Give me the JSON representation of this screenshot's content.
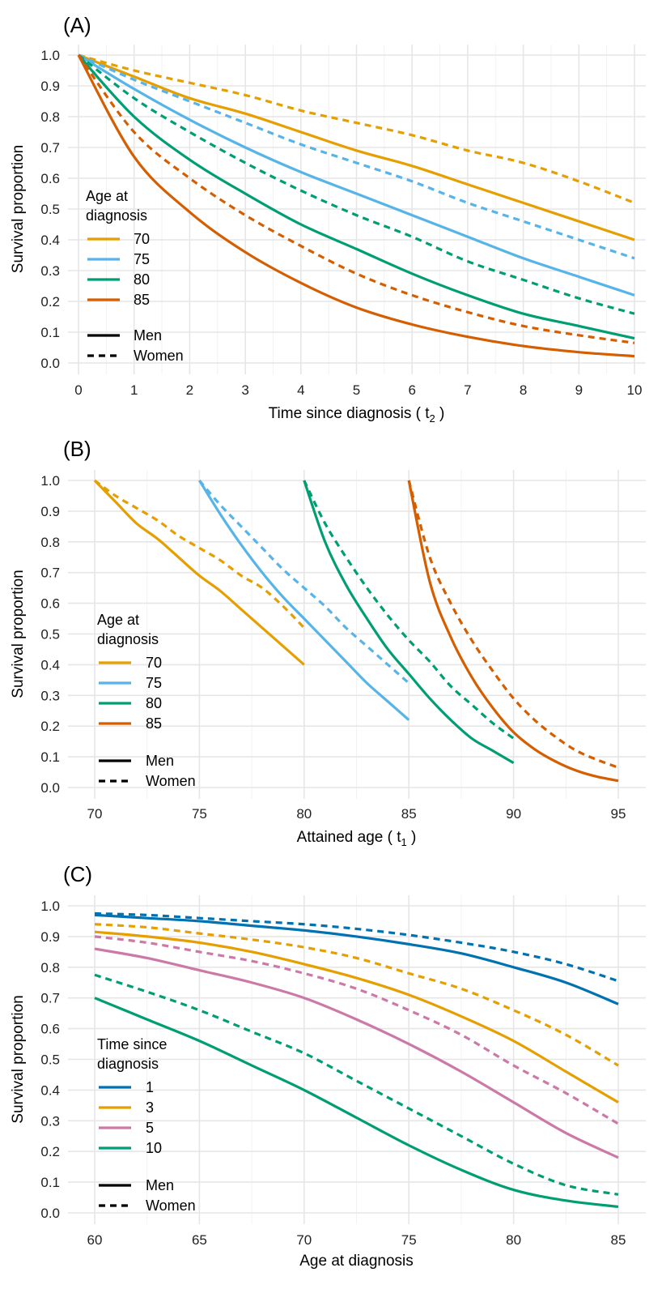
{
  "chart_data": [
    {
      "type": "line",
      "panel_label": "(A)",
      "xlabel": "Time since diagnosis (",
      "xlabel_var": "t",
      "xlabel_sub": "2",
      "xlabel_close": ")",
      "ylabel": "Survival proportion",
      "xlim": [
        0,
        10
      ],
      "ylim": [
        0,
        1
      ],
      "x_ticks": [
        "0",
        "1",
        "2",
        "3",
        "4",
        "5",
        "6",
        "7",
        "8",
        "9",
        "10"
      ],
      "y_ticks": [
        "0.0",
        "0.1",
        "0.2",
        "0.3",
        "0.4",
        "0.5",
        "0.6",
        "0.7",
        "0.8",
        "0.9",
        "1.0"
      ],
      "grid": true,
      "legend": {
        "placement": "left",
        "title": [
          "Age at",
          "diagnosis"
        ],
        "groups": [
          "70",
          "75",
          "80",
          "85"
        ],
        "linetypes": [
          "Men",
          "Women"
        ]
      },
      "series": [
        {
          "group": "70",
          "sex": "Men",
          "color": "#E69F00",
          "dash": "solid",
          "x": [
            0,
            1,
            2,
            3,
            4,
            5,
            6,
            7,
            8,
            9,
            10
          ],
          "y": [
            1.0,
            0.93,
            0.86,
            0.81,
            0.75,
            0.69,
            0.64,
            0.58,
            0.52,
            0.46,
            0.4
          ]
        },
        {
          "group": "70",
          "sex": "Women",
          "color": "#E69F00",
          "dash": "dashed",
          "x": [
            0,
            1,
            2,
            3,
            4,
            5,
            6,
            7,
            8,
            9,
            10
          ],
          "y": [
            1.0,
            0.95,
            0.91,
            0.87,
            0.82,
            0.78,
            0.74,
            0.69,
            0.65,
            0.59,
            0.52
          ]
        },
        {
          "group": "75",
          "sex": "Men",
          "color": "#56B4E9",
          "dash": "solid",
          "x": [
            0,
            1,
            2,
            3,
            4,
            5,
            6,
            7,
            8,
            9,
            10
          ],
          "y": [
            1.0,
            0.89,
            0.79,
            0.7,
            0.62,
            0.55,
            0.48,
            0.41,
            0.34,
            0.28,
            0.22
          ]
        },
        {
          "group": "75",
          "sex": "Women",
          "color": "#56B4E9",
          "dash": "dashed",
          "x": [
            0,
            1,
            2,
            3,
            4,
            5,
            6,
            7,
            8,
            9,
            10
          ],
          "y": [
            1.0,
            0.92,
            0.85,
            0.78,
            0.71,
            0.65,
            0.59,
            0.52,
            0.46,
            0.4,
            0.34
          ]
        },
        {
          "group": "80",
          "sex": "Men",
          "color": "#009E73",
          "dash": "solid",
          "x": [
            0,
            1,
            2,
            3,
            4,
            5,
            6,
            7,
            8,
            9,
            10
          ],
          "y": [
            1.0,
            0.8,
            0.66,
            0.55,
            0.45,
            0.37,
            0.29,
            0.22,
            0.16,
            0.12,
            0.08
          ]
        },
        {
          "group": "80",
          "sex": "Women",
          "color": "#009E73",
          "dash": "dashed",
          "x": [
            0,
            1,
            2,
            3,
            4,
            5,
            6,
            7,
            8,
            9,
            10
          ],
          "y": [
            1.0,
            0.86,
            0.75,
            0.65,
            0.56,
            0.48,
            0.41,
            0.33,
            0.27,
            0.21,
            0.16
          ]
        },
        {
          "group": "85",
          "sex": "Men",
          "color": "#D55E00",
          "dash": "solid",
          "x": [
            0,
            1,
            2,
            3,
            4,
            5,
            6,
            7,
            8,
            9,
            10
          ],
          "y": [
            1.0,
            0.67,
            0.49,
            0.36,
            0.26,
            0.18,
            0.125,
            0.085,
            0.055,
            0.035,
            0.022
          ]
        },
        {
          "group": "85",
          "sex": "Women",
          "color": "#D55E00",
          "dash": "dashed",
          "x": [
            0,
            1,
            2,
            3,
            4,
            5,
            6,
            7,
            8,
            9,
            10
          ],
          "y": [
            1.0,
            0.75,
            0.6,
            0.48,
            0.38,
            0.29,
            0.22,
            0.165,
            0.12,
            0.09,
            0.065
          ]
        }
      ]
    },
    {
      "type": "line",
      "panel_label": "(B)",
      "xlabel": "Attained age (",
      "xlabel_var": "t",
      "xlabel_sub": "1",
      "xlabel_close": ")",
      "ylabel": "Survival proportion",
      "xlim": [
        68.5,
        96.5
      ],
      "ylim": [
        0,
        1
      ],
      "x_ticks": [
        "70",
        "75",
        "80",
        "85",
        "90",
        "95"
      ],
      "y_ticks": [
        "0.0",
        "0.1",
        "0.2",
        "0.3",
        "0.4",
        "0.5",
        "0.6",
        "0.7",
        "0.8",
        "0.9",
        "1.0"
      ],
      "grid": true,
      "legend": {
        "placement": "left",
        "title": [
          "Age at",
          "diagnosis"
        ],
        "groups": [
          "70",
          "75",
          "80",
          "85"
        ],
        "linetypes": [
          "Men",
          "Women"
        ]
      },
      "series": [
        {
          "group": "70",
          "sex": "Men",
          "color": "#E69F00",
          "dash": "solid",
          "x": [
            70,
            71,
            72,
            73,
            74,
            75,
            76,
            77,
            78,
            79,
            80
          ],
          "y": [
            1.0,
            0.93,
            0.86,
            0.81,
            0.75,
            0.69,
            0.64,
            0.58,
            0.52,
            0.46,
            0.4
          ]
        },
        {
          "group": "70",
          "sex": "Women",
          "color": "#E69F00",
          "dash": "dashed",
          "x": [
            70,
            71,
            72,
            73,
            74,
            75,
            76,
            77,
            78,
            79,
            80
          ],
          "y": [
            1.0,
            0.95,
            0.91,
            0.87,
            0.82,
            0.78,
            0.74,
            0.69,
            0.65,
            0.59,
            0.52
          ]
        },
        {
          "group": "75",
          "sex": "Men",
          "color": "#56B4E9",
          "dash": "solid",
          "x": [
            75,
            76,
            77,
            78,
            79,
            80,
            81,
            82,
            83,
            84,
            85
          ],
          "y": [
            1.0,
            0.89,
            0.79,
            0.7,
            0.62,
            0.55,
            0.48,
            0.41,
            0.34,
            0.28,
            0.22
          ]
        },
        {
          "group": "75",
          "sex": "Women",
          "color": "#56B4E9",
          "dash": "dashed",
          "x": [
            75,
            76,
            77,
            78,
            79,
            80,
            81,
            82,
            83,
            84,
            85
          ],
          "y": [
            1.0,
            0.92,
            0.85,
            0.78,
            0.71,
            0.65,
            0.59,
            0.52,
            0.46,
            0.4,
            0.34
          ]
        },
        {
          "group": "80",
          "sex": "Men",
          "color": "#009E73",
          "dash": "solid",
          "x": [
            80,
            81,
            82,
            83,
            84,
            85,
            86,
            87,
            88,
            89,
            90
          ],
          "y": [
            1.0,
            0.8,
            0.66,
            0.55,
            0.45,
            0.37,
            0.29,
            0.22,
            0.16,
            0.12,
            0.08
          ]
        },
        {
          "group": "80",
          "sex": "Women",
          "color": "#009E73",
          "dash": "dashed",
          "x": [
            80,
            81,
            82,
            83,
            84,
            85,
            86,
            87,
            88,
            89,
            90
          ],
          "y": [
            1.0,
            0.86,
            0.75,
            0.65,
            0.56,
            0.48,
            0.41,
            0.33,
            0.27,
            0.21,
            0.16
          ]
        },
        {
          "group": "85",
          "sex": "Men",
          "color": "#D55E00",
          "dash": "solid",
          "x": [
            85,
            86,
            87,
            88,
            89,
            90,
            91,
            92,
            93,
            94,
            95
          ],
          "y": [
            1.0,
            0.67,
            0.49,
            0.36,
            0.26,
            0.18,
            0.125,
            0.085,
            0.055,
            0.035,
            0.022
          ]
        },
        {
          "group": "85",
          "sex": "Women",
          "color": "#D55E00",
          "dash": "dashed",
          "x": [
            85,
            86,
            87,
            88,
            89,
            90,
            91,
            92,
            93,
            94,
            95
          ],
          "y": [
            1.0,
            0.75,
            0.6,
            0.48,
            0.38,
            0.29,
            0.22,
            0.165,
            0.12,
            0.09,
            0.065
          ]
        }
      ]
    },
    {
      "type": "line",
      "panel_label": "(C)",
      "xlabel": "Age at diagnosis",
      "ylabel": "Survival proportion",
      "xlim": [
        58.8,
        86.2
      ],
      "ylim": [
        0,
        1
      ],
      "x_ticks": [
        "60",
        "65",
        "70",
        "75",
        "80",
        "85"
      ],
      "y_ticks": [
        "0.0",
        "0.1",
        "0.2",
        "0.3",
        "0.4",
        "0.5",
        "0.6",
        "0.7",
        "0.8",
        "0.9",
        "1.0"
      ],
      "grid": true,
      "legend": {
        "placement": "left",
        "title": [
          "Time since",
          "diagnosis"
        ],
        "groups": [
          "1",
          "3",
          "5",
          "10"
        ],
        "linetypes": [
          "Men",
          "Women"
        ]
      },
      "series": [
        {
          "group": "1",
          "sex": "Men",
          "color": "#0072B2",
          "dash": "solid",
          "x": [
            60,
            62.5,
            65,
            67.5,
            70,
            72.5,
            75,
            77.5,
            80,
            82.5,
            85
          ],
          "y": [
            0.97,
            0.96,
            0.95,
            0.935,
            0.92,
            0.9,
            0.875,
            0.845,
            0.8,
            0.75,
            0.68
          ]
        },
        {
          "group": "1",
          "sex": "Women",
          "color": "#0072B2",
          "dash": "dashed",
          "x": [
            60,
            62.5,
            65,
            67.5,
            70,
            72.5,
            75,
            77.5,
            80,
            82.5,
            85
          ],
          "y": [
            0.975,
            0.97,
            0.96,
            0.95,
            0.94,
            0.925,
            0.905,
            0.88,
            0.85,
            0.81,
            0.755
          ]
        },
        {
          "group": "3",
          "sex": "Men",
          "color": "#E69F00",
          "dash": "solid",
          "x": [
            60,
            62.5,
            65,
            67.5,
            70,
            72.5,
            75,
            77.5,
            80,
            82.5,
            85
          ],
          "y": [
            0.915,
            0.9,
            0.88,
            0.85,
            0.81,
            0.765,
            0.71,
            0.64,
            0.56,
            0.46,
            0.36
          ]
        },
        {
          "group": "3",
          "sex": "Women",
          "color": "#E69F00",
          "dash": "dashed",
          "x": [
            60,
            62.5,
            65,
            67.5,
            70,
            72.5,
            75,
            77.5,
            80,
            82.5,
            85
          ],
          "y": [
            0.94,
            0.93,
            0.91,
            0.89,
            0.865,
            0.83,
            0.78,
            0.73,
            0.66,
            0.58,
            0.48
          ]
        },
        {
          "group": "5",
          "sex": "Men",
          "color": "#CC79A7",
          "dash": "solid",
          "x": [
            60,
            62.5,
            65,
            67.5,
            70,
            72.5,
            75,
            77.5,
            80,
            82.5,
            85
          ],
          "y": [
            0.86,
            0.83,
            0.79,
            0.75,
            0.7,
            0.63,
            0.55,
            0.46,
            0.36,
            0.26,
            0.18
          ]
        },
        {
          "group": "5",
          "sex": "Women",
          "color": "#CC79A7",
          "dash": "dashed",
          "x": [
            60,
            62.5,
            65,
            67.5,
            70,
            72.5,
            75,
            77.5,
            80,
            82.5,
            85
          ],
          "y": [
            0.9,
            0.88,
            0.85,
            0.82,
            0.78,
            0.73,
            0.66,
            0.58,
            0.48,
            0.39,
            0.29
          ]
        },
        {
          "group": "10",
          "sex": "Men",
          "color": "#009E73",
          "dash": "solid",
          "x": [
            60,
            62.5,
            65,
            67.5,
            70,
            72.5,
            75,
            77.5,
            80,
            82.5,
            85
          ],
          "y": [
            0.7,
            0.63,
            0.56,
            0.48,
            0.4,
            0.31,
            0.22,
            0.14,
            0.075,
            0.04,
            0.02
          ]
        },
        {
          "group": "10",
          "sex": "Women",
          "color": "#009E73",
          "dash": "dashed",
          "x": [
            60,
            62.5,
            65,
            67.5,
            70,
            72.5,
            75,
            77.5,
            80,
            82.5,
            85
          ],
          "y": [
            0.775,
            0.72,
            0.66,
            0.59,
            0.52,
            0.43,
            0.34,
            0.25,
            0.16,
            0.09,
            0.06
          ]
        }
      ]
    }
  ]
}
